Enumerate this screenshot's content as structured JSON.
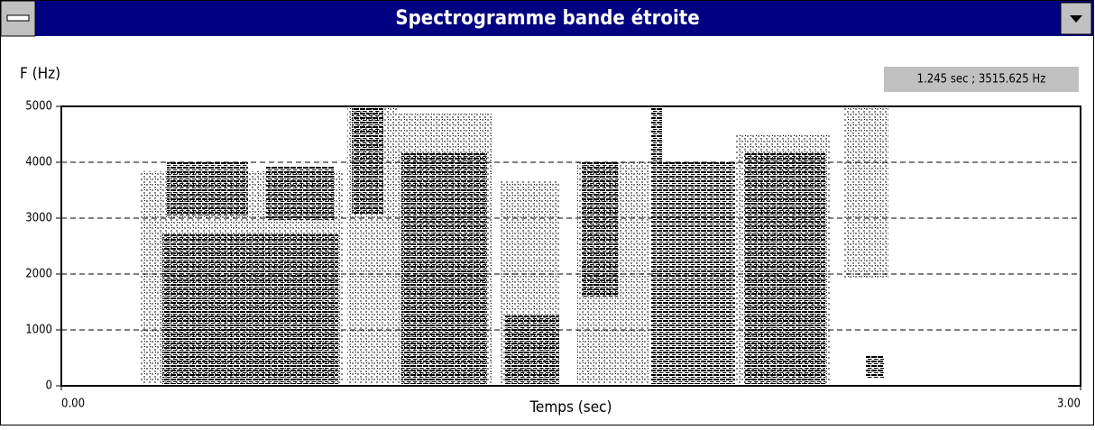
{
  "window": {
    "title": "Spectrogramme bande étroite"
  },
  "readout": "1.245 sec ; 3515.625 Hz",
  "chart_data": {
    "type": "spectrogram",
    "ylabel": "F (Hz)",
    "xlabel": "Temps (sec)",
    "xlim": [
      0,
      3
    ],
    "xticks": [
      {
        "value": 0,
        "label": "0.00"
      },
      {
        "value": 3,
        "label": "3.00"
      }
    ],
    "ylim": [
      0,
      5000
    ],
    "yticks": [
      0,
      1000,
      2000,
      3000,
      4000,
      5000
    ],
    "grid": true
  }
}
